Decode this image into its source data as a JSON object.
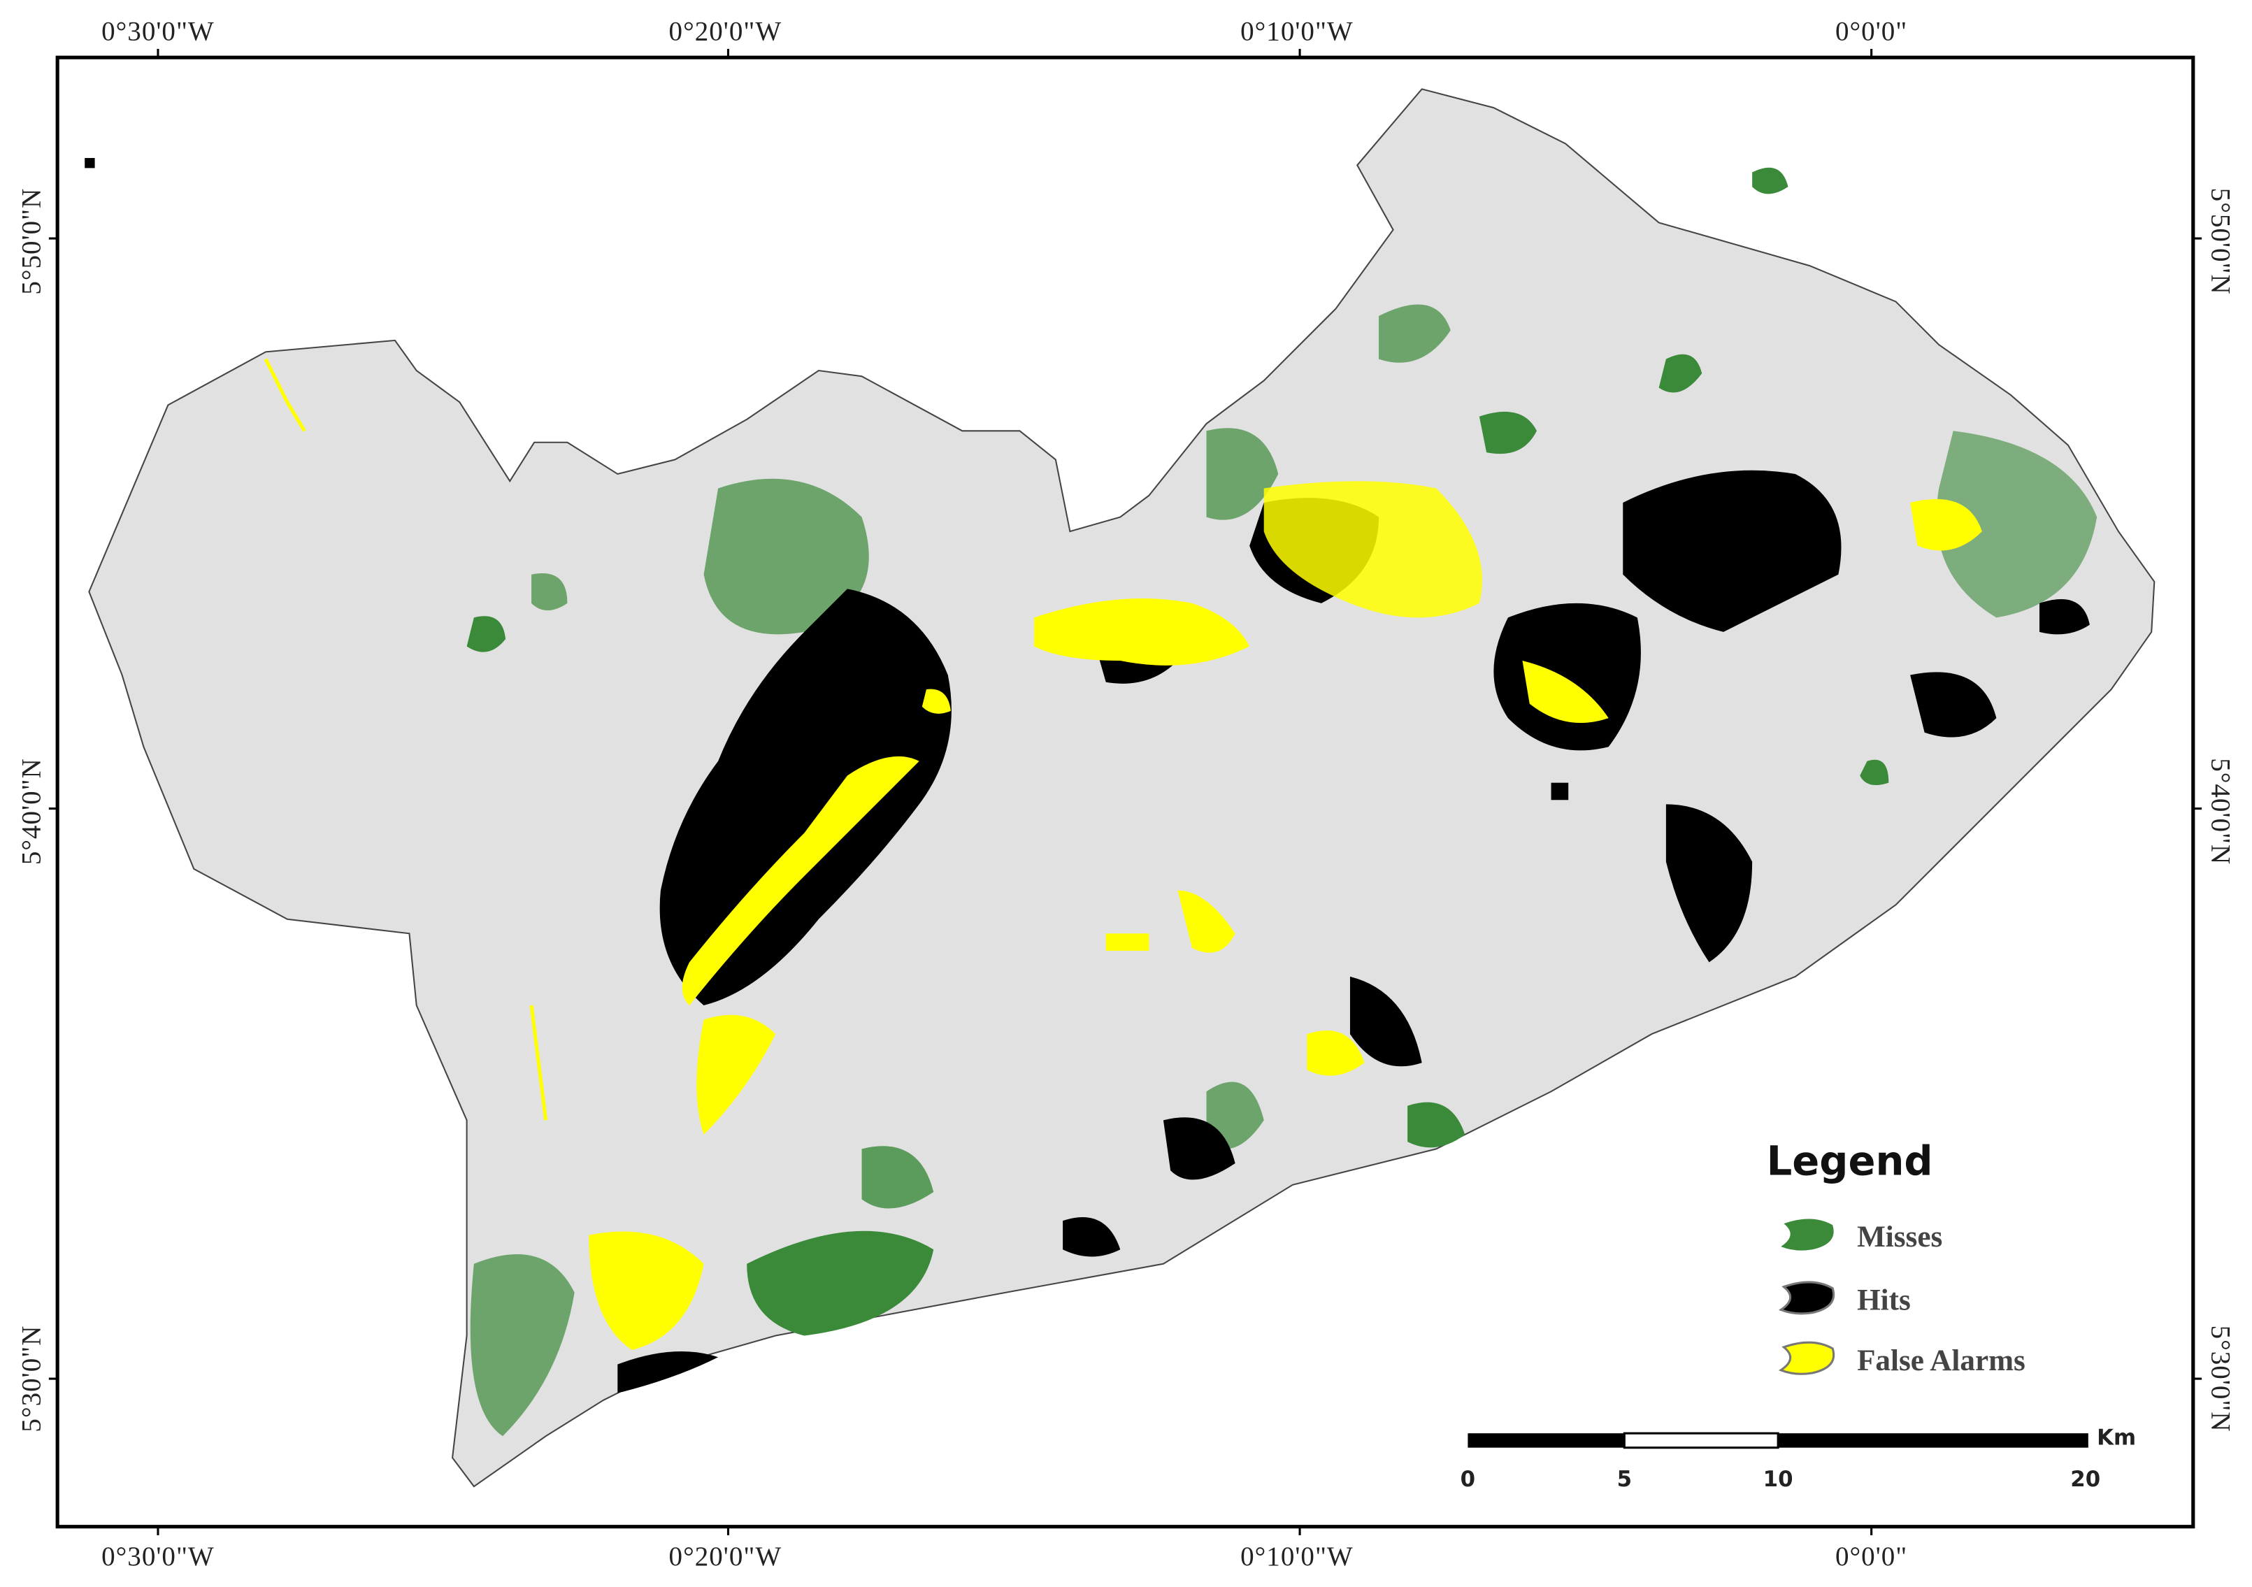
{
  "map": {
    "top_labels": [
      "0°30'0\"W",
      "0°20'0\"W",
      "0°10'0\"W",
      "0°0'0\""
    ],
    "bottom_labels": [
      "0°30'0\"W",
      "0°20'0\"W",
      "0°10'0\"W",
      "0°0'0\""
    ],
    "left_labels": [
      "5°50'0\"N",
      "5°40'0\"N",
      "5°30'0\"N"
    ],
    "right_labels": [
      "5°50'0\"N",
      "5°40'0\"N",
      "5°30'0\"N"
    ],
    "legend": {
      "title": "Legend",
      "items": [
        "Misses",
        "Hits",
        "False Alarms"
      ]
    },
    "scale_bar": {
      "unit": "Km",
      "labels": [
        "0",
        "5",
        "10",
        "20"
      ]
    }
  }
}
